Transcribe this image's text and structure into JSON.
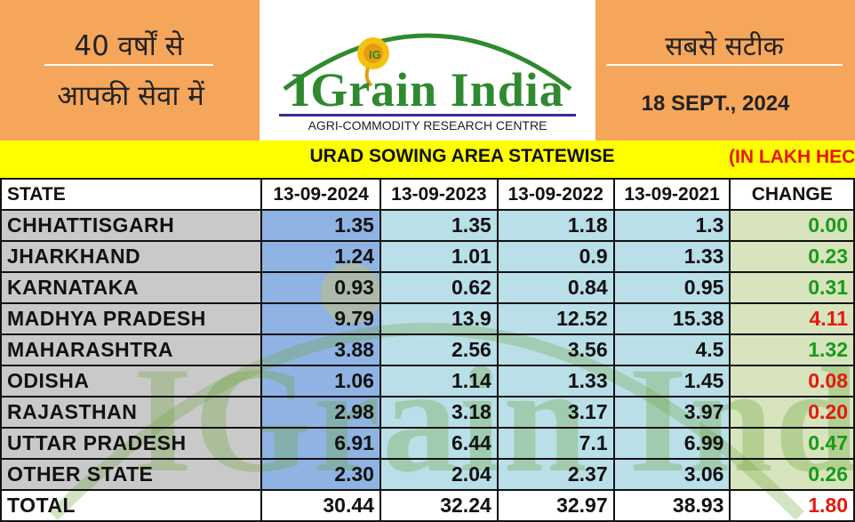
{
  "header": {
    "left_line1": "40 वर्षों से",
    "left_line2": "आपकी सेवा में",
    "logo_name": "IGrain India",
    "logo_sub": "AGRI-COMMODITY RESEARCH CENTRE",
    "right_line1": "सबसे सटीक",
    "date": "18 SEPT., 2024"
  },
  "title": "URAD SOWING AREA STATEWISE",
  "unit": "(IN LAKH HEC.)",
  "table": {
    "headers": [
      "STATE",
      "13-09-2024",
      "13-09-2023",
      "13-09-2022",
      "13-09-2021",
      "CHANGE"
    ],
    "rows": [
      {
        "state": "CHHATTISGARH",
        "v2024": "1.35",
        "v2023": "1.35",
        "v2022": "1.18",
        "v2021": "1.3",
        "change": "0.00",
        "dir": "up"
      },
      {
        "state": "JHARKHAND",
        "v2024": "1.24",
        "v2023": "1.01",
        "v2022": "0.9",
        "v2021": "1.33",
        "change": "0.23",
        "dir": "up"
      },
      {
        "state": "KARNATAKA",
        "v2024": "0.93",
        "v2023": "0.62",
        "v2022": "0.84",
        "v2021": "0.95",
        "change": "0.31",
        "dir": "up"
      },
      {
        "state": "MADHYA PRADESH",
        "v2024": "9.79",
        "v2023": "13.9",
        "v2022": "12.52",
        "v2021": "15.38",
        "change": "4.11",
        "dir": "down"
      },
      {
        "state": "MAHARASHTRA",
        "v2024": "3.88",
        "v2023": "2.56",
        "v2022": "3.56",
        "v2021": "4.5",
        "change": "1.32",
        "dir": "up"
      },
      {
        "state": "ODISHA",
        "v2024": "1.06",
        "v2023": "1.14",
        "v2022": "1.33",
        "v2021": "1.45",
        "change": "0.08",
        "dir": "down"
      },
      {
        "state": "RAJASTHAN",
        "v2024": "2.98",
        "v2023": "3.18",
        "v2022": "3.17",
        "v2021": "3.97",
        "change": "0.20",
        "dir": "down"
      },
      {
        "state": "UTTAR PRADESH",
        "v2024": "6.91",
        "v2023": "6.44",
        "v2022": "7.1",
        "v2021": "6.99",
        "change": "0.47",
        "dir": "up"
      },
      {
        "state": "OTHER STATE",
        "v2024": "2.30",
        "v2023": "2.04",
        "v2022": "2.37",
        "v2021": "3.06",
        "change": "0.26",
        "dir": "up"
      }
    ],
    "total": {
      "state": "TOTAL",
      "v2024": "30.44",
      "v2023": "32.24",
      "v2022": "32.97",
      "v2021": "38.93",
      "change": "1.80",
      "dir": "down"
    }
  },
  "colors": {
    "header_bg": "#f5a65a",
    "title_bg": "#ffff00",
    "unit_text": "#e8160c",
    "state_col_bg": "#c7c7c7",
    "col2024_bg": "#8fb4e3",
    "col_prev_bg": "#b9dfe8",
    "change_bg": "#d7e4bd",
    "increase": "#1a9a1a",
    "decrease": "#e31a0e"
  },
  "icons": {
    "logo_mark": "grain-drop-logo-icon"
  }
}
